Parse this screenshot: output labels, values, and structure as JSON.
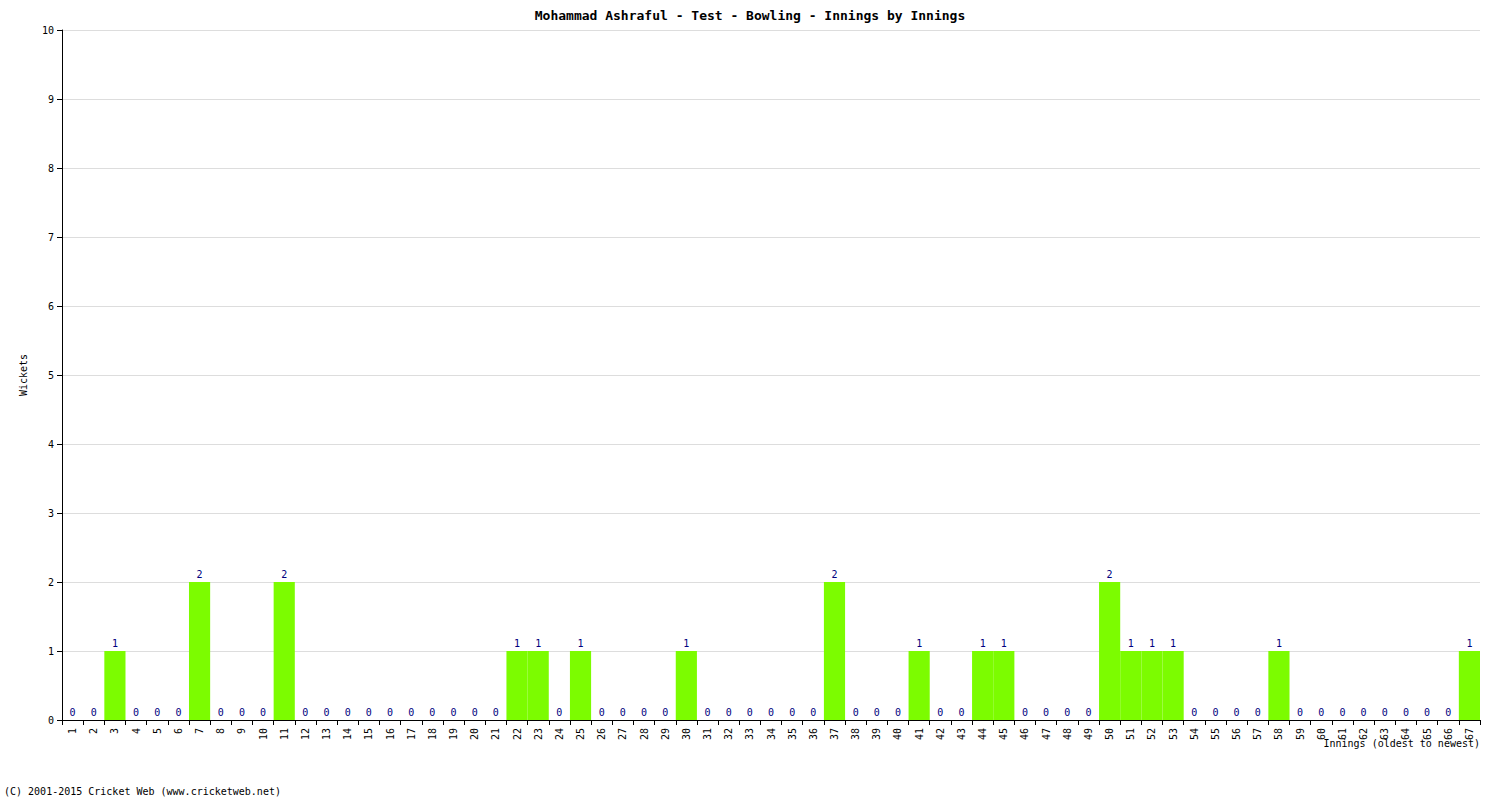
{
  "chart_data": {
    "type": "bar",
    "title": "Mohammad Ashraful - Test - Bowling - Innings by Innings",
    "x_label": "Innings (oldest to newest)",
    "y_label": "Wickets",
    "annotations": [
      "(C) 2001-2015 Cricket Web (www.cricketweb.net)"
    ],
    "categories": [
      "1",
      "2",
      "3",
      "4",
      "5",
      "6",
      "7",
      "8",
      "9",
      "10",
      "11",
      "12",
      "13",
      "14",
      "15",
      "16",
      "17",
      "18",
      "19",
      "20",
      "21",
      "22",
      "23",
      "24",
      "25",
      "26",
      "27",
      "28",
      "29",
      "30",
      "31",
      "32",
      "33",
      "34",
      "35",
      "36",
      "37",
      "38",
      "39",
      "40",
      "41",
      "42",
      "43",
      "44",
      "45",
      "46",
      "47",
      "48",
      "49",
      "50",
      "51",
      "52",
      "53",
      "54",
      "55",
      "56",
      "57",
      "58",
      "59",
      "60",
      "61",
      "62",
      "63",
      "64",
      "65",
      "66",
      "67"
    ],
    "values": [
      0,
      0,
      1,
      0,
      0,
      0,
      2,
      0,
      0,
      0,
      2,
      0,
      0,
      0,
      0,
      0,
      0,
      0,
      0,
      0,
      0,
      1,
      1,
      0,
      1,
      0,
      0,
      0,
      0,
      1,
      0,
      0,
      0,
      0,
      0,
      0,
      2,
      0,
      0,
      0,
      1,
      0,
      0,
      1,
      1,
      0,
      0,
      0,
      0,
      2,
      1,
      1,
      1,
      0,
      0,
      0,
      0,
      1,
      0,
      0,
      0,
      0,
      0,
      0,
      0,
      0,
      1
    ],
    "color": "#7cfc00",
    "ylim": [
      0,
      10
    ],
    "yticks": [
      0,
      1,
      2,
      3,
      4,
      5,
      6,
      7,
      8,
      9,
      10
    ],
    "grid": true,
    "data_labels": true
  }
}
